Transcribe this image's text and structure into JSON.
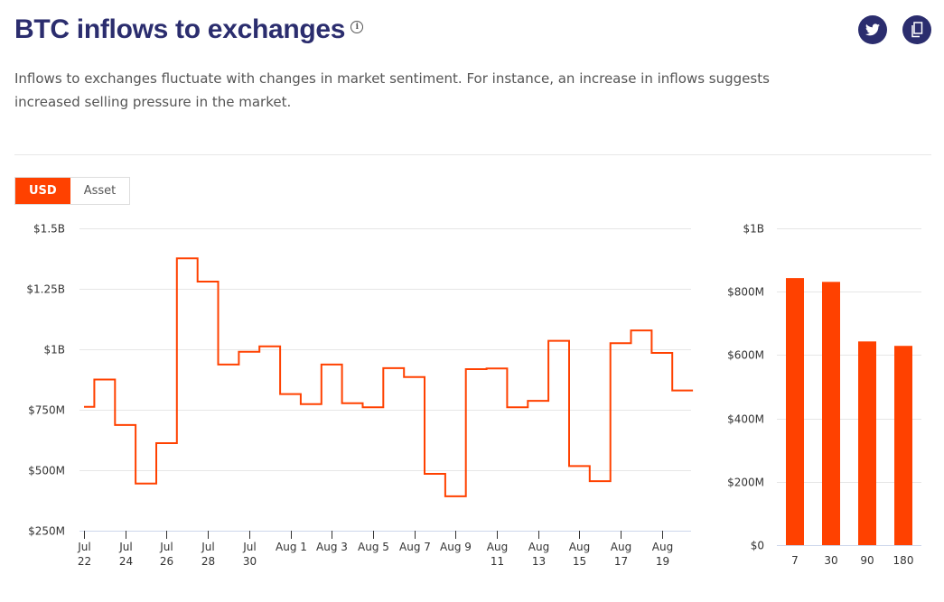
{
  "header": {
    "title": "BTC inflows to exchanges",
    "info_icon": "info-icon",
    "description": "Inflows to exchanges fluctuate with changes in market sentiment. For instance, an increase in inflows suggests increased selling pressure in the market.",
    "share_buttons": [
      {
        "icon": "twitter-icon",
        "name": "twitter-share-button"
      },
      {
        "icon": "copy-icon",
        "name": "copy-button"
      }
    ]
  },
  "toggle": {
    "options": [
      "USD",
      "Asset"
    ],
    "selected": "USD"
  },
  "colors": {
    "accent": "#ff4100",
    "title": "#2b2d6e",
    "grid": "#e6e6e6",
    "axis": "#ccd6eb"
  },
  "chart_data": [
    {
      "type": "line",
      "step": true,
      "title": "",
      "xlabel": "",
      "ylabel": "",
      "ylim": [
        250000000,
        1500000000
      ],
      "grid": true,
      "y_ticks": [
        "$250M",
        "$500M",
        "$750M",
        "$1B",
        "$1.25B",
        "$1.5B"
      ],
      "y_tick_values": [
        250000000,
        500000000,
        750000000,
        1000000000,
        1250000000,
        1500000000
      ],
      "x_ticks": [
        {
          "line1": "Jul",
          "line2": "22",
          "index": 0
        },
        {
          "line1": "Jul",
          "line2": "24",
          "index": 2
        },
        {
          "line1": "Jul",
          "line2": "26",
          "index": 4
        },
        {
          "line1": "Jul",
          "line2": "28",
          "index": 6
        },
        {
          "line1": "Jul",
          "line2": "30",
          "index": 8
        },
        {
          "line1": "Aug 1",
          "line2": "",
          "index": 10
        },
        {
          "line1": "Aug 3",
          "line2": "",
          "index": 12
        },
        {
          "line1": "Aug 5",
          "line2": "",
          "index": 14
        },
        {
          "line1": "Aug 7",
          "line2": "",
          "index": 16
        },
        {
          "line1": "Aug 9",
          "line2": "",
          "index": 18
        },
        {
          "line1": "Aug",
          "line2": "11",
          "index": 20
        },
        {
          "line1": "Aug",
          "line2": "13",
          "index": 22
        },
        {
          "line1": "Aug",
          "line2": "15",
          "index": 24
        },
        {
          "line1": "Aug",
          "line2": "17",
          "index": 26
        },
        {
          "line1": "Aug",
          "line2": "19",
          "index": 28
        }
      ],
      "x": [
        "Jul 22",
        "Jul 23",
        "Jul 24",
        "Jul 25",
        "Jul 26",
        "Jul 27",
        "Jul 28",
        "Jul 29",
        "Jul 30",
        "Jul 31",
        "Aug 1",
        "Aug 2",
        "Aug 3",
        "Aug 4",
        "Aug 5",
        "Aug 6",
        "Aug 7",
        "Aug 8",
        "Aug 9",
        "Aug 10",
        "Aug 11",
        "Aug 12",
        "Aug 13",
        "Aug 14",
        "Aug 15",
        "Aug 16",
        "Aug 17",
        "Aug 18",
        "Aug 19",
        "Aug 20"
      ],
      "series": [
        {
          "name": "BTC inflows (USD)",
          "values": [
            762000000,
            875000000,
            687000000,
            445000000,
            612000000,
            1376000000,
            1280000000,
            937000000,
            990000000,
            1012000000,
            815000000,
            773000000,
            937000000,
            777000000,
            760000000,
            922000000,
            885000000,
            485000000,
            392000000,
            918000000,
            921000000,
            760000000,
            787000000,
            1035000000,
            517000000,
            455000000,
            1025000000,
            1078000000,
            985000000,
            830000000
          ]
        }
      ]
    },
    {
      "type": "bar",
      "title": "",
      "xlabel": "",
      "ylabel": "",
      "ylim": [
        0,
        1000000000
      ],
      "grid": true,
      "y_ticks": [
        "$0",
        "$200M",
        "$400M",
        "$600M",
        "$800M",
        "$1B"
      ],
      "y_tick_values": [
        0,
        200000000,
        400000000,
        600000000,
        800000000,
        1000000000
      ],
      "categories": [
        "7",
        "30",
        "90",
        "180"
      ],
      "values": [
        843000000,
        831000000,
        643000000,
        629000000
      ]
    }
  ]
}
